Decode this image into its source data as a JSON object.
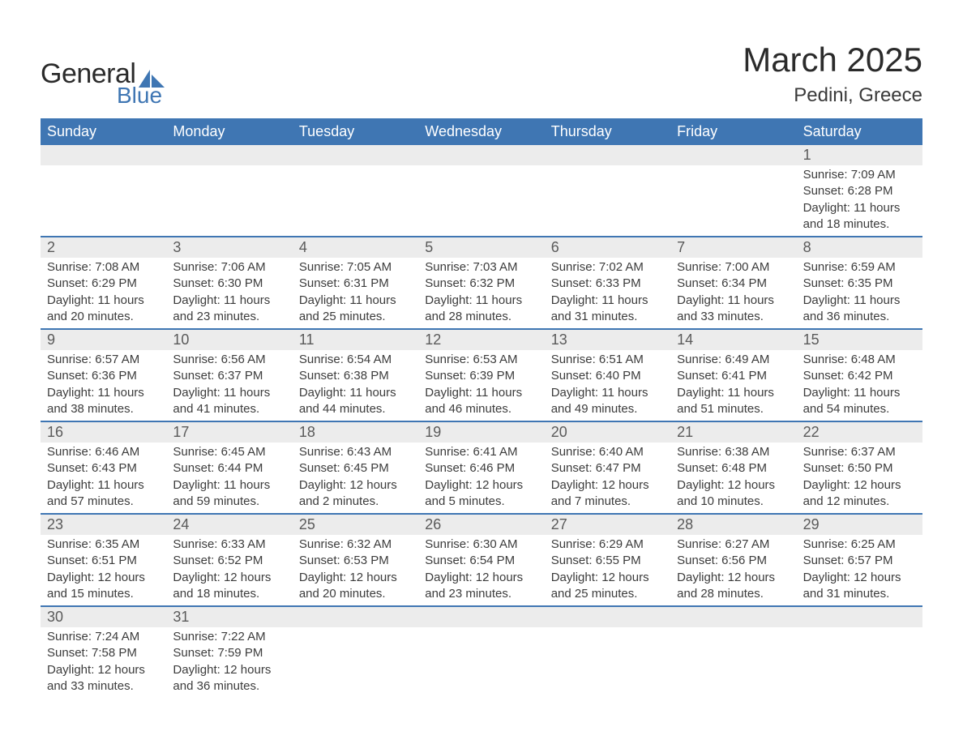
{
  "logo": {
    "general": "General",
    "blue": "Blue"
  },
  "header": {
    "month": "March 2025",
    "location": "Pedini, Greece"
  },
  "colors": {
    "header_bg": "#3f76b3",
    "header_text": "#ffffff",
    "daynum_bg": "#ececec",
    "row_border": "#3f76b3",
    "body_text": "#3c3c3c",
    "page_bg": "#ffffff"
  },
  "font": {
    "family": "Arial",
    "title_size_pt": 32,
    "body_size_pt": 11,
    "dow_size_pt": 14
  },
  "layout": {
    "columns": 7,
    "start_day": "Sunday"
  },
  "dow": [
    "Sunday",
    "Monday",
    "Tuesday",
    "Wednesday",
    "Thursday",
    "Friday",
    "Saturday"
  ],
  "labels": {
    "sunrise": "Sunrise:",
    "sunset": "Sunset:",
    "daylight": "Daylight:"
  },
  "weeks": [
    [
      {
        "blank": true
      },
      {
        "blank": true
      },
      {
        "blank": true
      },
      {
        "blank": true
      },
      {
        "blank": true
      },
      {
        "blank": true
      },
      {
        "d": "1",
        "sr": "7:09 AM",
        "ss": "6:28 PM",
        "dl": "11 hours and 18 minutes."
      }
    ],
    [
      {
        "d": "2",
        "sr": "7:08 AM",
        "ss": "6:29 PM",
        "dl": "11 hours and 20 minutes."
      },
      {
        "d": "3",
        "sr": "7:06 AM",
        "ss": "6:30 PM",
        "dl": "11 hours and 23 minutes."
      },
      {
        "d": "4",
        "sr": "7:05 AM",
        "ss": "6:31 PM",
        "dl": "11 hours and 25 minutes."
      },
      {
        "d": "5",
        "sr": "7:03 AM",
        "ss": "6:32 PM",
        "dl": "11 hours and 28 minutes."
      },
      {
        "d": "6",
        "sr": "7:02 AM",
        "ss": "6:33 PM",
        "dl": "11 hours and 31 minutes."
      },
      {
        "d": "7",
        "sr": "7:00 AM",
        "ss": "6:34 PM",
        "dl": "11 hours and 33 minutes."
      },
      {
        "d": "8",
        "sr": "6:59 AM",
        "ss": "6:35 PM",
        "dl": "11 hours and 36 minutes."
      }
    ],
    [
      {
        "d": "9",
        "sr": "6:57 AM",
        "ss": "6:36 PM",
        "dl": "11 hours and 38 minutes."
      },
      {
        "d": "10",
        "sr": "6:56 AM",
        "ss": "6:37 PM",
        "dl": "11 hours and 41 minutes."
      },
      {
        "d": "11",
        "sr": "6:54 AM",
        "ss": "6:38 PM",
        "dl": "11 hours and 44 minutes."
      },
      {
        "d": "12",
        "sr": "6:53 AM",
        "ss": "6:39 PM",
        "dl": "11 hours and 46 minutes."
      },
      {
        "d": "13",
        "sr": "6:51 AM",
        "ss": "6:40 PM",
        "dl": "11 hours and 49 minutes."
      },
      {
        "d": "14",
        "sr": "6:49 AM",
        "ss": "6:41 PM",
        "dl": "11 hours and 51 minutes."
      },
      {
        "d": "15",
        "sr": "6:48 AM",
        "ss": "6:42 PM",
        "dl": "11 hours and 54 minutes."
      }
    ],
    [
      {
        "d": "16",
        "sr": "6:46 AM",
        "ss": "6:43 PM",
        "dl": "11 hours and 57 minutes."
      },
      {
        "d": "17",
        "sr": "6:45 AM",
        "ss": "6:44 PM",
        "dl": "11 hours and 59 minutes."
      },
      {
        "d": "18",
        "sr": "6:43 AM",
        "ss": "6:45 PM",
        "dl": "12 hours and 2 minutes."
      },
      {
        "d": "19",
        "sr": "6:41 AM",
        "ss": "6:46 PM",
        "dl": "12 hours and 5 minutes."
      },
      {
        "d": "20",
        "sr": "6:40 AM",
        "ss": "6:47 PM",
        "dl": "12 hours and 7 minutes."
      },
      {
        "d": "21",
        "sr": "6:38 AM",
        "ss": "6:48 PM",
        "dl": "12 hours and 10 minutes."
      },
      {
        "d": "22",
        "sr": "6:37 AM",
        "ss": "6:50 PM",
        "dl": "12 hours and 12 minutes."
      }
    ],
    [
      {
        "d": "23",
        "sr": "6:35 AM",
        "ss": "6:51 PM",
        "dl": "12 hours and 15 minutes."
      },
      {
        "d": "24",
        "sr": "6:33 AM",
        "ss": "6:52 PM",
        "dl": "12 hours and 18 minutes."
      },
      {
        "d": "25",
        "sr": "6:32 AM",
        "ss": "6:53 PM",
        "dl": "12 hours and 20 minutes."
      },
      {
        "d": "26",
        "sr": "6:30 AM",
        "ss": "6:54 PM",
        "dl": "12 hours and 23 minutes."
      },
      {
        "d": "27",
        "sr": "6:29 AM",
        "ss": "6:55 PM",
        "dl": "12 hours and 25 minutes."
      },
      {
        "d": "28",
        "sr": "6:27 AM",
        "ss": "6:56 PM",
        "dl": "12 hours and 28 minutes."
      },
      {
        "d": "29",
        "sr": "6:25 AM",
        "ss": "6:57 PM",
        "dl": "12 hours and 31 minutes."
      }
    ],
    [
      {
        "d": "30",
        "sr": "7:24 AM",
        "ss": "7:58 PM",
        "dl": "12 hours and 33 minutes."
      },
      {
        "d": "31",
        "sr": "7:22 AM",
        "ss": "7:59 PM",
        "dl": "12 hours and 36 minutes."
      },
      {
        "blank": true
      },
      {
        "blank": true
      },
      {
        "blank": true
      },
      {
        "blank": true
      },
      {
        "blank": true
      }
    ]
  ]
}
